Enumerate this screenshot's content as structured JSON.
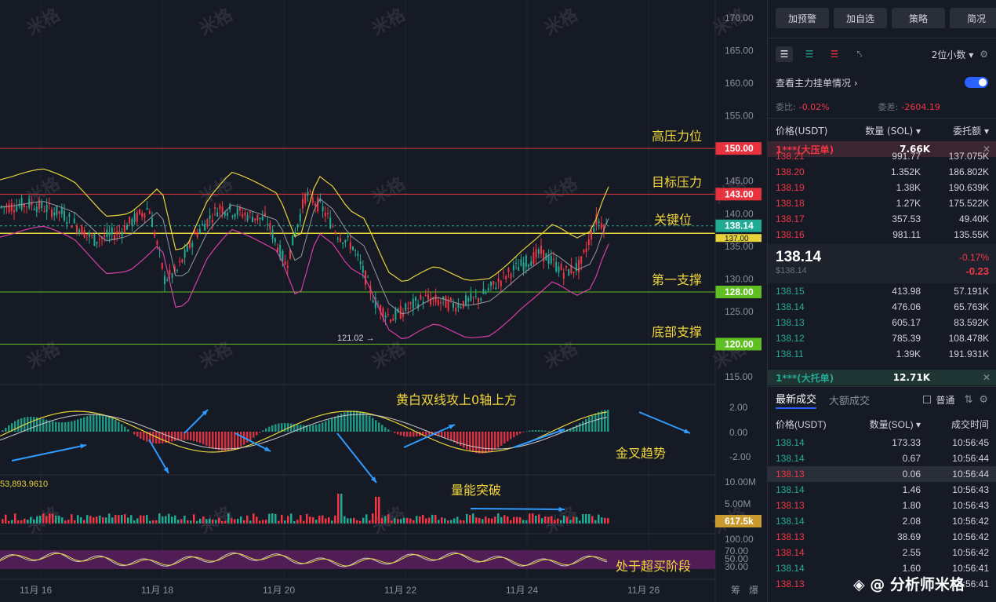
{
  "toolbar": {
    "buttons": [
      "加预警",
      "加自选",
      "策略",
      "简况"
    ]
  },
  "view_controls": {
    "icons": [
      "orderbook-both-icon",
      "orderbook-bids-icon",
      "orderbook-asks-icon",
      "orderbook-flip-icon"
    ],
    "decimals": "2位小数 ▾"
  },
  "depth": {
    "link_label": "查看主力挂单情况 ›",
    "ratio_label": "委比:",
    "ratio_value": "-0.02%",
    "diff_label": "委差:",
    "diff_value": "-2604.19",
    "col_price": "价格(USDT)",
    "col_qty": "数量 (SOL) ▾",
    "col_amount": "委托额 ▾",
    "sell_big": {
      "label": "1***(大压单)",
      "value": "7.66K"
    },
    "asks": [
      {
        "price": "138.21",
        "qty": "991.77",
        "amount": "137.075K"
      },
      {
        "price": "138.20",
        "qty": "1.352K",
        "amount": "186.802K"
      },
      {
        "price": "138.19",
        "qty": "1.38K",
        "amount": "190.639K"
      },
      {
        "price": "138.18",
        "qty": "1.27K",
        "amount": "175.522K"
      },
      {
        "price": "138.17",
        "qty": "357.53",
        "amount": "49.40K"
      },
      {
        "price": "138.16",
        "qty": "981.11",
        "amount": "135.55K"
      }
    ],
    "last_price": "138.14",
    "last_sub": "$138.14",
    "change_pct": "-0.17%",
    "change_abs": "-0.23",
    "bids": [
      {
        "price": "138.15",
        "qty": "413.98",
        "amount": "57.191K"
      },
      {
        "price": "138.14",
        "qty": "476.06",
        "amount": "65.763K"
      },
      {
        "price": "138.13",
        "qty": "605.17",
        "amount": "83.592K"
      },
      {
        "price": "138.12",
        "qty": "785.39",
        "amount": "108.478K"
      },
      {
        "price": "138.11",
        "qty": "1.39K",
        "amount": "191.931K"
      }
    ],
    "buy_big": {
      "label": "1***(大托单)",
      "value": "12.71K"
    }
  },
  "trades": {
    "tab_latest": "最新成交",
    "tab_large": "大额成交",
    "checkbox_label": "普通",
    "col_price": "价格(USDT)",
    "col_qty": "数量(SOL) ▾",
    "col_time": "成交时间",
    "rows": [
      {
        "price": "138.14",
        "qty": "173.33",
        "time": "10:56:45",
        "side": "buy"
      },
      {
        "price": "138.14",
        "qty": "0.67",
        "time": "10:56:44",
        "side": "buy"
      },
      {
        "price": "138.13",
        "qty": "0.06",
        "time": "10:56:44",
        "side": "sell"
      },
      {
        "price": "138.14",
        "qty": "1.46",
        "time": "10:56:43",
        "side": "buy"
      },
      {
        "price": "138.13",
        "qty": "1.80",
        "time": "10:56:43",
        "side": "sell"
      },
      {
        "price": "138.14",
        "qty": "2.08",
        "time": "10:56:42",
        "side": "buy"
      },
      {
        "price": "138.13",
        "qty": "38.69",
        "time": "10:56:42",
        "side": "sell"
      },
      {
        "price": "138.14",
        "qty": "2.55",
        "time": "10:56:42",
        "side": "sell"
      },
      {
        "price": "138.14",
        "qty": "1.60",
        "time": "10:56:41",
        "side": "buy"
      },
      {
        "price": "138.13",
        "qty": "",
        "time": "10:56:41",
        "side": "sell"
      }
    ]
  },
  "chart": {
    "y_ticks": [
      "170.00",
      "165.00",
      "160.00",
      "155.00",
      "145.00",
      "140.00",
      "135.00",
      "130.00",
      "125.00",
      "115.00"
    ],
    "macd_ticks": [
      "2.00",
      "0.00",
      "-2.00"
    ],
    "vol_ticks": [
      "10.00M",
      "5.00M"
    ],
    "rsi_ticks": [
      "100.00",
      "70.00",
      "50.00",
      "30.00"
    ],
    "x_ticks": [
      "11月 16",
      "11月 18",
      "11月 20",
      "11月 22",
      "11月 24",
      "11月 26"
    ],
    "level_badges": [
      {
        "price": "150.00",
        "color": "#e8333f",
        "label": "高压力位"
      },
      {
        "price": "143.00",
        "color": "#e8333f",
        "label": "目标压力"
      },
      {
        "price": "138.14",
        "color": "#22ab94",
        "label": "关键位"
      },
      {
        "price": "128.00",
        "color": "#5fbf23",
        "label": "第一支撑"
      },
      {
        "price": "120.00",
        "color": "#5fbf23",
        "label": "底部支撑"
      }
    ],
    "badge_137": "137.00",
    "low_marker": "121.02 →",
    "vol_badge": "617.5k",
    "vol_left": "53,893.9610",
    "annotations": {
      "macd": "黄白双线攻上0轴上方",
      "gold_cross": "金叉趋势",
      "volume": "量能突破",
      "rsi": "处于超买阶段"
    },
    "watermark": "米格",
    "bottom_right": [
      "筹",
      "爆"
    ]
  },
  "brand": "◈ @ 分析师米格",
  "colors": {
    "up": "#22ab94",
    "down": "#f23645",
    "accent": "#2962ff"
  }
}
